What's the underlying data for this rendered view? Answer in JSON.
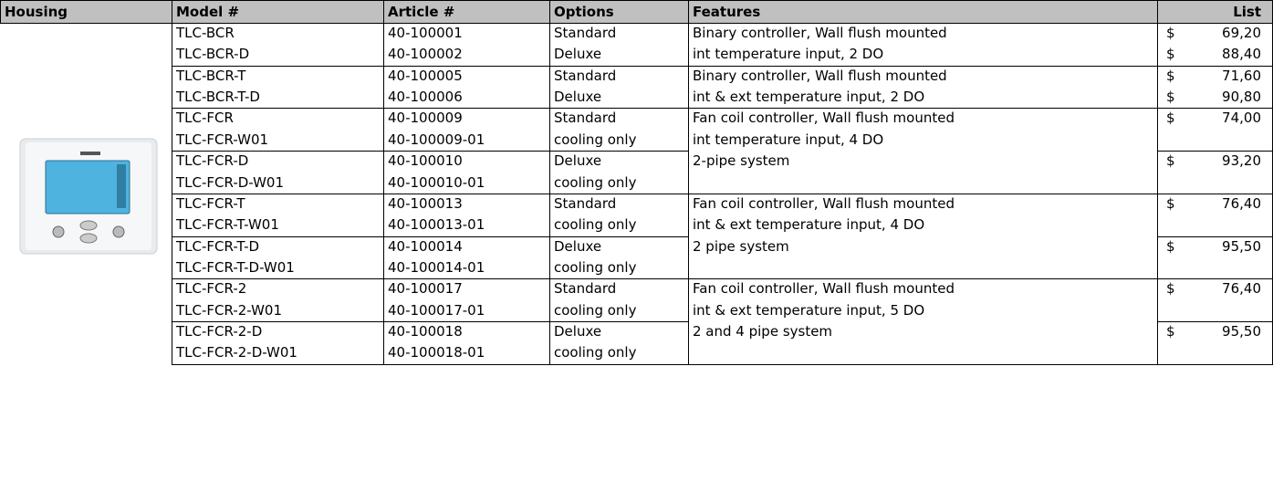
{
  "table": {
    "header": [
      "Housing",
      "Model #",
      "Article #",
      "Options",
      "Features",
      "List"
    ],
    "blocks": [
      {
        "pairs": [
          {
            "rows": [
              [
                "TLC-BCR",
                "40-100001",
                "Standard"
              ],
              [
                "TLC-BCR-D",
                "40-100002",
                "Deluxe"
              ]
            ],
            "prices": [
              {
                "currency": "$",
                "amount": "69,20"
              },
              {
                "currency": "$",
                "amount": "88,40"
              }
            ]
          }
        ],
        "features": [
          "Binary controller, Wall flush mounted",
          "int temperature input, 2 DO"
        ]
      },
      {
        "pairs": [
          {
            "rows": [
              [
                "TLC-BCR-T",
                "40-100005",
                "Standard"
              ],
              [
                "TLC-BCR-T-D",
                "40-100006",
                "Deluxe"
              ]
            ],
            "prices": [
              {
                "currency": "$",
                "amount": "71,60"
              },
              {
                "currency": "$",
                "amount": "90,80"
              }
            ]
          }
        ],
        "features": [
          "Binary controller, Wall flush mounted",
          "int & ext temperature input, 2 DO"
        ]
      },
      {
        "pairs": [
          {
            "rows": [
              [
                "TLC-FCR",
                "40-100009",
                "Standard"
              ],
              [
                "TLC-FCR-W01",
                "40-100009-01",
                "cooling only"
              ]
            ],
            "prices": [
              {
                "currency": "$",
                "amount": "74,00"
              }
            ]
          },
          {
            "rows": [
              [
                "TLC-FCR-D",
                "40-100010",
                "Deluxe"
              ],
              [
                "TLC-FCR-D-W01",
                "40-100010-01",
                "cooling only"
              ]
            ],
            "prices": [
              {
                "currency": "$",
                "amount": "93,20"
              }
            ]
          }
        ],
        "features": [
          "Fan coil controller, Wall flush mounted",
          "int temperature input, 4 DO",
          "2-pipe system"
        ]
      },
      {
        "pairs": [
          {
            "rows": [
              [
                "TLC-FCR-T",
                "40-100013",
                "Standard"
              ],
              [
                "TLC-FCR-T-W01",
                "40-100013-01",
                "cooling only"
              ]
            ],
            "prices": [
              {
                "currency": "$",
                "amount": "76,40"
              }
            ]
          },
          {
            "rows": [
              [
                "TLC-FCR-T-D",
                "40-100014",
                "Deluxe"
              ],
              [
                "TLC-FCR-T-D-W01",
                "40-100014-01",
                "cooling only"
              ]
            ],
            "prices": [
              {
                "currency": "$",
                "amount": "95,50"
              }
            ]
          }
        ],
        "features": [
          "Fan coil controller, Wall flush mounted",
          "int & ext temperature input, 4 DO",
          "2 pipe system"
        ]
      },
      {
        "pairs": [
          {
            "rows": [
              [
                "TLC-FCR-2",
                "40-100017",
                "Standard"
              ],
              [
                "TLC-FCR-2-W01",
                "40-100017-01",
                "cooling only"
              ]
            ],
            "prices": [
              {
                "currency": "$",
                "amount": "76,40"
              }
            ]
          },
          {
            "rows": [
              [
                "TLC-FCR-2-D",
                "40-100018",
                "Deluxe"
              ],
              [
                "TLC-FCR-2-D-W01",
                "40-100018-01",
                "cooling only"
              ]
            ],
            "prices": [
              {
                "currency": "$",
                "amount": "95,50"
              }
            ]
          }
        ],
        "features": [
          "Fan coil controller, Wall flush mounted",
          "int & ext temperature input, 5 DO",
          "2 and 4 pipe system"
        ]
      }
    ]
  }
}
